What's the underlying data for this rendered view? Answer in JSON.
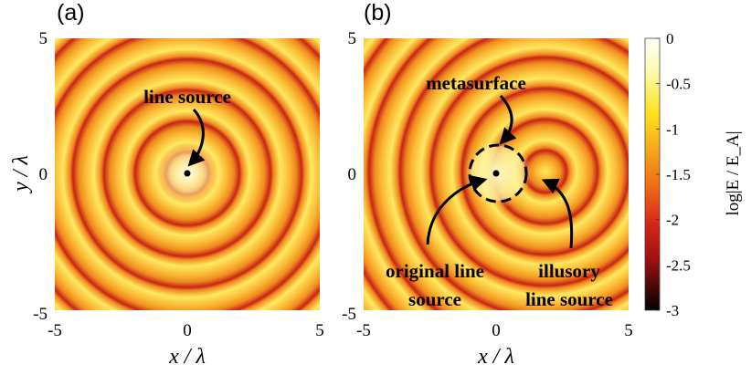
{
  "panels": [
    {
      "label": "(a)",
      "x_ticks": [
        "-5",
        "0",
        "5"
      ],
      "y_ticks": [
        "5",
        "0",
        "-5"
      ],
      "xlabel": "x / λ",
      "ylabel": "y / λ",
      "annotations": [
        "line source"
      ]
    },
    {
      "label": "(b)",
      "x_ticks": [
        "-5",
        "0",
        "5"
      ],
      "y_ticks": [
        "5",
        "0",
        "-5"
      ],
      "xlabel": "x / λ",
      "annotations": [
        "metasurface",
        "original line",
        "source",
        "illusory",
        "line source"
      ]
    }
  ],
  "colorbar": {
    "ticks": [
      "0",
      "-0.5",
      "-1",
      "-1.5",
      "-2",
      "-2.5",
      "-3"
    ],
    "label": "log|E / E_A|"
  },
  "chart_data": [
    {
      "type": "heatmap",
      "xlim": [
        -5,
        5
      ],
      "ylim": [
        -5,
        5
      ],
      "xlabel": "x / λ",
      "ylabel": "y / λ",
      "color_range": [
        -3,
        0
      ],
      "sources": [
        {
          "x": 0,
          "y": 0,
          "label": "line source"
        }
      ]
    },
    {
      "type": "heatmap",
      "xlim": [
        -5,
        5
      ],
      "ylim": [
        -5,
        5
      ],
      "xlabel": "x / λ",
      "color_range": [
        -3,
        0
      ],
      "sources": [
        {
          "x": 0,
          "y": 0,
          "label": "original line source"
        },
        {
          "x": 1.6,
          "y": 0,
          "label": "illusory line source"
        }
      ],
      "metasurface_radius": 1
    }
  ],
  "colors": {
    "ring_dark": "#b8141a",
    "field_mid": "#f28a1c",
    "field_bright": "#ffe85a",
    "near_white": "#fffde8"
  }
}
